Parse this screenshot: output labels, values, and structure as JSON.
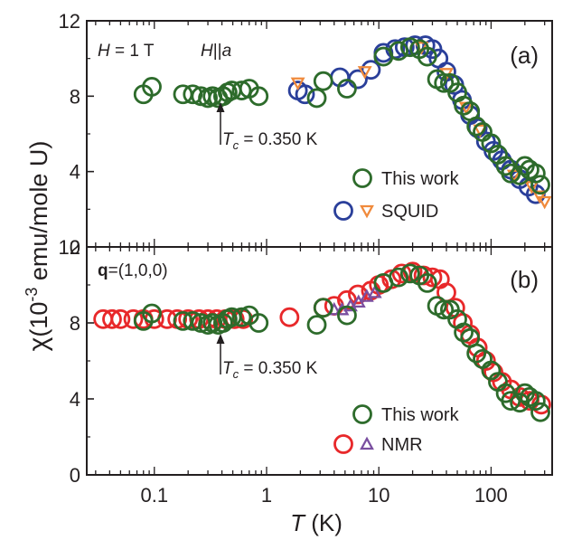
{
  "colors": {
    "this_work": "#2d6b2b",
    "squid_circle": "#2a3f9a",
    "squid_triangle": "#f08a3c",
    "nmr_circle": "#e8282a",
    "nmr_triangle": "#7a4fa0",
    "axis": "#231f20"
  },
  "y_axis_label": {
    "chi": "χ",
    "open": "(10",
    "exponent": "-3",
    "rest": " emu/mole U)"
  },
  "x_axis_label": {
    "var": "T",
    "unit": " (K)"
  },
  "chart_data": [
    {
      "type": "scatter",
      "panel_label": "(a)",
      "annotation": {
        "h_var": "H",
        "h_value": " = 1 T",
        "dir_var": "H",
        "dir_sep": "||",
        "dir_axis": "a"
      },
      "tc_label": {
        "var": "T",
        "sub": "c",
        "value": " = 0.350 K",
        "x": 0.35
      },
      "x_scale": "log",
      "xlim": [
        0.025,
        350
      ],
      "ylim": [
        0,
        12
      ],
      "yticks": [
        0,
        4,
        8,
        12
      ],
      "xticks": [
        0.1,
        1,
        10,
        100
      ],
      "xtick_labels": [
        "0.1",
        "1",
        "10",
        "100"
      ],
      "legend": [
        {
          "symbols": [
            "this_work"
          ],
          "label": "This work"
        },
        {
          "symbols": [
            "squid_circle",
            "squid_triangle"
          ],
          "label": "SQUID"
        }
      ],
      "series": [
        {
          "key": "squid_circle",
          "marker": "circle",
          "points": [
            [
              1.9,
              8.3
            ],
            [
              2.2,
              8.1
            ],
            [
              4.5,
              9.0
            ],
            [
              6.5,
              8.9
            ],
            [
              8.5,
              9.4
            ],
            [
              11,
              10.3
            ],
            [
              14,
              10.5
            ],
            [
              17,
              10.6
            ],
            [
              21,
              10.7
            ],
            [
              26,
              10.7
            ],
            [
              30,
              10.5
            ],
            [
              34,
              10.0
            ],
            [
              40,
              9.3
            ],
            [
              47,
              8.6
            ],
            [
              55,
              7.8
            ],
            [
              65,
              7.0
            ],
            [
              76,
              6.3
            ],
            [
              90,
              5.6
            ],
            [
              105,
              5.1
            ],
            [
              125,
              4.6
            ],
            [
              150,
              4.1
            ],
            [
              180,
              3.6
            ],
            [
              215,
              3.2
            ],
            [
              250,
              2.8
            ]
          ]
        },
        {
          "key": "squid_triangle",
          "marker": "triangle-down",
          "points": [
            [
              1.9,
              8.7
            ],
            [
              7.5,
              9.3
            ],
            [
              24,
              10.6
            ],
            [
              40,
              9.2
            ],
            [
              60,
              7.4
            ],
            [
              80,
              6.2
            ],
            [
              160,
              3.8
            ],
            [
              230,
              3.2
            ],
            [
              270,
              2.7
            ],
            [
              300,
              2.4
            ]
          ]
        },
        {
          "key": "this_work",
          "marker": "circle",
          "points": [
            [
              0.08,
              8.1
            ],
            [
              0.095,
              8.5
            ],
            [
              0.18,
              8.1
            ],
            [
              0.22,
              8.1
            ],
            [
              0.26,
              8.0
            ],
            [
              0.3,
              7.9
            ],
            [
              0.33,
              8.0
            ],
            [
              0.37,
              7.9
            ],
            [
              0.41,
              8.0
            ],
            [
              0.45,
              8.2
            ],
            [
              0.49,
              8.3
            ],
            [
              0.6,
              8.3
            ],
            [
              0.7,
              8.4
            ],
            [
              0.85,
              8.0
            ],
            [
              2.8,
              7.9
            ],
            [
              3.2,
              8.8
            ],
            [
              5.2,
              8.4
            ],
            [
              11,
              10.1
            ],
            [
              15,
              10.4
            ],
            [
              19,
              10.6
            ],
            [
              23,
              10.5
            ],
            [
              27,
              10.1
            ],
            [
              33,
              8.9
            ],
            [
              38,
              8.7
            ],
            [
              43,
              8.7
            ],
            [
              50,
              8.2
            ],
            [
              57,
              7.5
            ],
            [
              65,
              7.2
            ],
            [
              74,
              6.4
            ],
            [
              84,
              6.1
            ],
            [
              100,
              5.5
            ],
            [
              115,
              4.9
            ],
            [
              135,
              4.3
            ],
            [
              150,
              3.9
            ],
            [
              180,
              3.8
            ],
            [
              200,
              4.3
            ],
            [
              220,
              4.1
            ],
            [
              250,
              3.9
            ],
            [
              275,
              3.3
            ]
          ]
        }
      ]
    },
    {
      "type": "scatter",
      "panel_label": "(b)",
      "annotation": {
        "q_var": "q",
        "q_value": "=(1,0,0)"
      },
      "tc_label": {
        "var": "T",
        "sub": "c",
        "value": " = 0.350 K",
        "x": 0.35
      },
      "x_scale": "log",
      "xlim": [
        0.025,
        350
      ],
      "ylim": [
        0,
        12
      ],
      "yticks": [
        0,
        4,
        8,
        12
      ],
      "xticks": [
        0.1,
        1,
        10,
        100
      ],
      "xtick_labels": [
        "0.1",
        "1",
        "10",
        "100"
      ],
      "legend": [
        {
          "symbols": [
            "this_work"
          ],
          "label": "This work"
        },
        {
          "symbols": [
            "nmr_circle",
            "nmr_triangle"
          ],
          "label": "NMR"
        }
      ],
      "series": [
        {
          "key": "nmr_circle",
          "marker": "circle",
          "points": [
            [
              0.035,
              8.2
            ],
            [
              0.042,
              8.2
            ],
            [
              0.05,
              8.2
            ],
            [
              0.065,
              8.2
            ],
            [
              0.08,
              8.2
            ],
            [
              0.1,
              8.2
            ],
            [
              0.13,
              8.2
            ],
            [
              0.16,
              8.2
            ],
            [
              0.2,
              8.2
            ],
            [
              0.25,
              8.2
            ],
            [
              0.3,
              8.2
            ],
            [
              0.36,
              8.2
            ],
            [
              0.43,
              8.2
            ],
            [
              0.52,
              8.2
            ],
            [
              0.62,
              8.2
            ],
            [
              1.6,
              8.3
            ],
            [
              3.2,
              8.8
            ],
            [
              4,
              8.9
            ],
            [
              5.2,
              9.2
            ],
            [
              6.5,
              9.5
            ],
            [
              8.5,
              9.7
            ],
            [
              10,
              10.0
            ],
            [
              13,
              10.3
            ],
            [
              16,
              10.6
            ],
            [
              20,
              10.7
            ],
            [
              25,
              10.5
            ],
            [
              30,
              10.4
            ],
            [
              35,
              10.3
            ],
            [
              40,
              9.6
            ],
            [
              48,
              8.8
            ],
            [
              56,
              8.0
            ],
            [
              65,
              7.4
            ],
            [
              76,
              6.7
            ],
            [
              90,
              6.0
            ],
            [
              105,
              5.4
            ],
            [
              125,
              4.9
            ],
            [
              150,
              4.5
            ],
            [
              180,
              4.1
            ],
            [
              220,
              3.9
            ],
            [
              280,
              3.7
            ]
          ]
        },
        {
          "key": "nmr_triangle",
          "marker": "triangle-up",
          "points": [
            [
              4.0,
              8.7
            ],
            [
              4.7,
              8.7
            ],
            [
              5.6,
              8.9
            ],
            [
              6.6,
              9.1
            ],
            [
              7.8,
              9.4
            ],
            [
              9.2,
              9.6
            ]
          ]
        },
        {
          "key": "this_work",
          "marker": "circle",
          "points": [
            [
              0.08,
              8.1
            ],
            [
              0.095,
              8.5
            ],
            [
              0.18,
              8.1
            ],
            [
              0.22,
              8.1
            ],
            [
              0.26,
              8.0
            ],
            [
              0.3,
              7.9
            ],
            [
              0.33,
              8.0
            ],
            [
              0.37,
              7.9
            ],
            [
              0.41,
              8.0
            ],
            [
              0.45,
              8.2
            ],
            [
              0.49,
              8.3
            ],
            [
              0.6,
              8.3
            ],
            [
              0.7,
              8.4
            ],
            [
              0.85,
              8.0
            ],
            [
              2.8,
              7.9
            ],
            [
              3.2,
              8.8
            ],
            [
              5.2,
              8.4
            ],
            [
              11,
              10.1
            ],
            [
              15,
              10.4
            ],
            [
              19,
              10.6
            ],
            [
              23,
              10.5
            ],
            [
              27,
              10.1
            ],
            [
              33,
              8.9
            ],
            [
              38,
              8.7
            ],
            [
              43,
              8.7
            ],
            [
              50,
              8.2
            ],
            [
              57,
              7.5
            ],
            [
              65,
              7.2
            ],
            [
              74,
              6.4
            ],
            [
              84,
              6.1
            ],
            [
              100,
              5.5
            ],
            [
              115,
              4.9
            ],
            [
              135,
              4.3
            ],
            [
              150,
              3.9
            ],
            [
              180,
              3.8
            ],
            [
              200,
              4.3
            ],
            [
              220,
              4.1
            ],
            [
              250,
              3.9
            ],
            [
              275,
              3.3
            ]
          ]
        }
      ]
    }
  ]
}
